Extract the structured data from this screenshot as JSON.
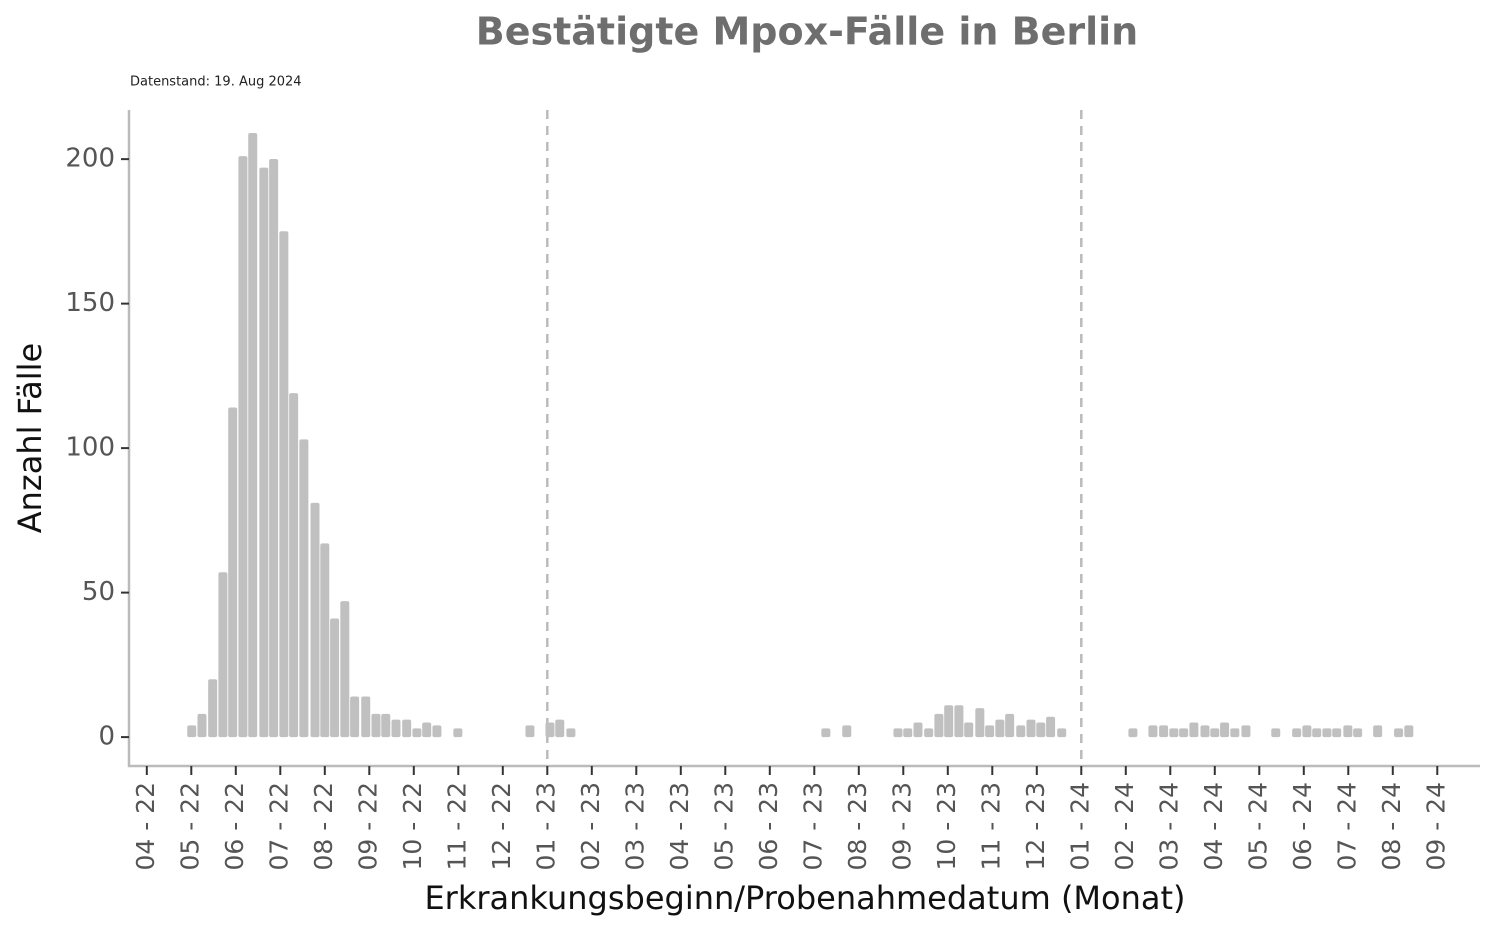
{
  "chart_data": {
    "type": "bar",
    "title": "Bestätigte Mpox-Fälle in Berlin",
    "subtitle": "Datenstand: 19. Aug 2024",
    "xlabel": "Erkrankungsbeginn/Probenahmedatum (Monat)",
    "ylabel": "Anzahl Fälle",
    "color": "#c0c0c0",
    "x": [
      1.01,
      1.24,
      1.48,
      1.71,
      1.93,
      2.16,
      2.38,
      2.63,
      2.85,
      3.08,
      3.3,
      3.53,
      3.78,
      4.0,
      4.22,
      4.45,
      4.67,
      4.92,
      5.15,
      5.37,
      5.6,
      5.84,
      6.07,
      6.29,
      6.52,
      6.99,
      8.61,
      9.06,
      9.28,
      9.53,
      15.26,
      15.73,
      16.88,
      17.1,
      17.33,
      17.57,
      17.8,
      18.02,
      18.25,
      18.47,
      18.72,
      18.94,
      19.17,
      19.39,
      19.64,
      19.87,
      20.09,
      20.31,
      20.56,
      22.16,
      22.61,
      22.85,
      23.08,
      23.3,
      23.53,
      23.78,
      24.0,
      24.22,
      24.45,
      24.7,
      25.37,
      25.84,
      26.07,
      26.29,
      26.52,
      26.74,
      26.99,
      27.21,
      27.66,
      28.13,
      28.36
    ],
    "values": [
      3,
      7,
      19,
      56,
      113,
      200,
      208,
      196,
      199,
      174,
      118,
      102,
      80,
      66,
      40,
      46,
      13,
      13,
      7,
      7,
      5,
      5,
      2,
      4,
      3,
      2,
      3,
      4,
      5,
      2,
      2,
      3,
      2,
      2,
      4,
      2,
      7,
      10,
      10,
      4,
      9,
      3,
      5,
      7,
      3,
      5,
      4,
      6,
      2,
      2,
      3,
      3,
      2,
      2,
      4,
      3,
      2,
      4,
      2,
      3,
      2,
      2,
      3,
      2,
      2,
      2,
      3,
      2,
      3,
      2,
      3
    ],
    "xlim": [
      -0.4,
      29.96
    ],
    "xticks": [
      {
        "value": 0,
        "label": "04 - 22"
      },
      {
        "value": 1,
        "label": "05 - 22"
      },
      {
        "value": 2,
        "label": "06 - 22"
      },
      {
        "value": 3,
        "label": "07 - 22"
      },
      {
        "value": 4,
        "label": "08 - 22"
      },
      {
        "value": 5,
        "label": "09 - 22"
      },
      {
        "value": 6,
        "label": "10 - 22"
      },
      {
        "value": 7,
        "label": "11 - 22"
      },
      {
        "value": 8,
        "label": "12 - 22"
      },
      {
        "value": 9,
        "label": "01 - 23"
      },
      {
        "value": 10,
        "label": "02 - 23"
      },
      {
        "value": 11,
        "label": "03 - 23"
      },
      {
        "value": 12,
        "label": "04 - 23"
      },
      {
        "value": 13,
        "label": "05 - 23"
      },
      {
        "value": 14,
        "label": "06 - 23"
      },
      {
        "value": 15,
        "label": "07 - 23"
      },
      {
        "value": 16,
        "label": "08 - 23"
      },
      {
        "value": 17,
        "label": "09 - 23"
      },
      {
        "value": 18,
        "label": "10 - 23"
      },
      {
        "value": 19,
        "label": "11 - 23"
      },
      {
        "value": 20,
        "label": "12 - 23"
      },
      {
        "value": 21,
        "label": "01 - 24"
      },
      {
        "value": 22,
        "label": "02 - 24"
      },
      {
        "value": 23,
        "label": "03 - 24"
      },
      {
        "value": 24,
        "label": "04 - 24"
      },
      {
        "value": 25,
        "label": "05 - 24"
      },
      {
        "value": 26,
        "label": "06 - 24"
      },
      {
        "value": 27,
        "label": "07 - 24"
      },
      {
        "value": 28,
        "label": "08 - 24"
      },
      {
        "value": 29,
        "label": "09 - 24"
      }
    ],
    "ylim": [
      -10,
      217
    ],
    "yticks": [
      0,
      50,
      100,
      150,
      200
    ],
    "vlines": [
      9,
      21
    ]
  }
}
